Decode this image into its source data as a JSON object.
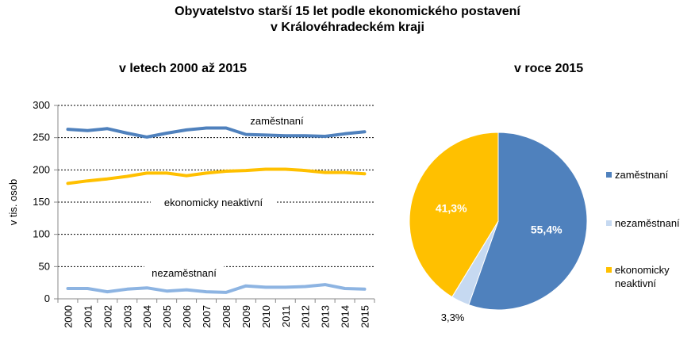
{
  "title_line1": "Obyvatelstvo starší 15 let podle ekonomického postavení",
  "title_line2": "v Královéhradeckém kraji",
  "chart_data": [
    {
      "type": "line",
      "subtitle": "v letech 2000 až 2015",
      "ylabel": "v tis. osob",
      "ylim": [
        0,
        300
      ],
      "yticks": [
        "0",
        "50",
        "100",
        "150",
        "200",
        "250",
        "300"
      ],
      "categories": [
        "2000",
        "2001",
        "2002",
        "2003",
        "2004",
        "2005",
        "2006",
        "2007",
        "2008",
        "2009",
        "2010",
        "2011",
        "2012",
        "2013",
        "2014",
        "2015"
      ],
      "grid": "dotted horizontal",
      "series": [
        {
          "name": "zaměstnaní",
          "color": "#4F81BD",
          "values": [
            263,
            261,
            264,
            257,
            251,
            257,
            262,
            265,
            265,
            255,
            254,
            253,
            253,
            252,
            256,
            259
          ]
        },
        {
          "name": "ekonomicky neaktivní",
          "color": "#FFC000",
          "values": [
            179,
            183,
            186,
            190,
            195,
            195,
            191,
            195,
            198,
            199,
            201,
            201,
            199,
            196,
            196,
            194
          ]
        },
        {
          "name": "nezaměstnaní",
          "color": "#8DB4E2",
          "values": [
            16,
            16,
            11,
            15,
            17,
            12,
            14,
            11,
            10,
            20,
            18,
            18,
            19,
            22,
            16,
            15
          ]
        }
      ]
    },
    {
      "type": "pie",
      "subtitle": "v roce 2015",
      "legend": "right",
      "slices": [
        {
          "name": "zaměstnaní",
          "value": 55.4,
          "label": "55,4%",
          "color": "#4F81BD"
        },
        {
          "name": "nezaměstnaní",
          "value": 3.3,
          "label": "3,3%",
          "color": "#C6D9F1"
        },
        {
          "name": "ekonomicky neaktivní",
          "value": 41.3,
          "label": "41,3%",
          "color": "#FFC000"
        }
      ]
    }
  ]
}
